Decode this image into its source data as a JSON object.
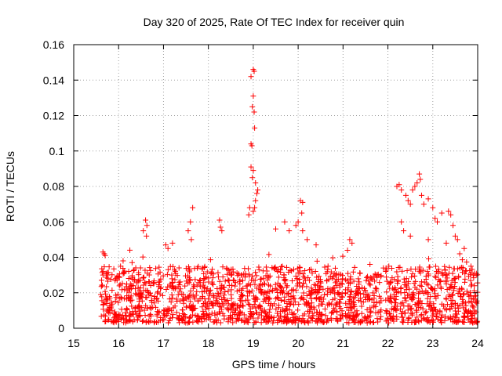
{
  "chart_data": {
    "type": "scatter",
    "title": "Day 320 of 2025, Rate Of TEC Index for receiver quin",
    "xlabel": "GPS time / hours",
    "ylabel": "ROTI / TECUs",
    "xlim": [
      15,
      24
    ],
    "ylim": [
      0,
      0.16
    ],
    "grid": true,
    "marker": "+",
    "marker_color": "#ff0000",
    "xticks": [
      "15",
      "16",
      "17",
      "18",
      "19",
      "20",
      "21",
      "22",
      "23",
      "24"
    ],
    "yticks": [
      "0",
      "0.02",
      "0.04",
      "0.06",
      "0.08",
      "0.1",
      "0.12",
      "0.14",
      "0.16"
    ],
    "series": [
      {
        "name": "ROTI",
        "segments": [
          {
            "start": 15.6,
            "end": 21.0,
            "base_min": 0.003,
            "base_max": 0.035
          },
          {
            "start": 21.05,
            "end": 21.85,
            "base_min": 0.003,
            "base_max": 0.032
          },
          {
            "start": 21.95,
            "end": 24.0,
            "base_min": 0.003,
            "base_max": 0.035
          }
        ],
        "highlights": [
          {
            "x": 15.65,
            "y": 0.043
          },
          {
            "x": 15.68,
            "y": 0.042
          },
          {
            "x": 15.7,
            "y": 0.041
          },
          {
            "x": 16.1,
            "y": 0.038
          },
          {
            "x": 16.3,
            "y": 0.037
          },
          {
            "x": 16.55,
            "y": 0.055
          },
          {
            "x": 16.6,
            "y": 0.061
          },
          {
            "x": 16.63,
            "y": 0.058
          },
          {
            "x": 16.62,
            "y": 0.052
          },
          {
            "x": 17.05,
            "y": 0.047
          },
          {
            "x": 17.2,
            "y": 0.048
          },
          {
            "x": 17.1,
            "y": 0.045
          },
          {
            "x": 17.55,
            "y": 0.055
          },
          {
            "x": 17.6,
            "y": 0.06
          },
          {
            "x": 17.65,
            "y": 0.068
          },
          {
            "x": 17.62,
            "y": 0.05
          },
          {
            "x": 18.25,
            "y": 0.061
          },
          {
            "x": 18.27,
            "y": 0.057
          },
          {
            "x": 18.3,
            "y": 0.055
          },
          {
            "x": 18.9,
            "y": 0.064
          },
          {
            "x": 18.92,
            "y": 0.068
          },
          {
            "x": 18.95,
            "y": 0.142
          },
          {
            "x": 19.0,
            "y": 0.146
          },
          {
            "x": 19.02,
            "y": 0.145
          },
          {
            "x": 18.98,
            "y": 0.125
          },
          {
            "x": 19.0,
            "y": 0.131
          },
          {
            "x": 19.02,
            "y": 0.122
          },
          {
            "x": 19.03,
            "y": 0.113
          },
          {
            "x": 18.95,
            "y": 0.104
          },
          {
            "x": 18.97,
            "y": 0.103
          },
          {
            "x": 18.95,
            "y": 0.091
          },
          {
            "x": 19.0,
            "y": 0.089
          },
          {
            "x": 18.98,
            "y": 0.085
          },
          {
            "x": 19.05,
            "y": 0.082
          },
          {
            "x": 19.1,
            "y": 0.078
          },
          {
            "x": 19.08,
            "y": 0.076
          },
          {
            "x": 19.05,
            "y": 0.072
          },
          {
            "x": 19.03,
            "y": 0.068
          },
          {
            "x": 19.0,
            "y": 0.066
          },
          {
            "x": 19.5,
            "y": 0.056
          },
          {
            "x": 19.7,
            "y": 0.06
          },
          {
            "x": 19.8,
            "y": 0.055
          },
          {
            "x": 19.95,
            "y": 0.058
          },
          {
            "x": 20.0,
            "y": 0.06
          },
          {
            "x": 20.05,
            "y": 0.072
          },
          {
            "x": 20.1,
            "y": 0.071
          },
          {
            "x": 20.08,
            "y": 0.065
          },
          {
            "x": 20.1,
            "y": 0.055
          },
          {
            "x": 20.2,
            "y": 0.05
          },
          {
            "x": 20.4,
            "y": 0.047
          },
          {
            "x": 21.15,
            "y": 0.05
          },
          {
            "x": 21.2,
            "y": 0.048
          },
          {
            "x": 21.1,
            "y": 0.044
          },
          {
            "x": 21.6,
            "y": 0.036
          },
          {
            "x": 21.9,
            "y": 0.034
          },
          {
            "x": 22.2,
            "y": 0.08
          },
          {
            "x": 22.25,
            "y": 0.081
          },
          {
            "x": 22.3,
            "y": 0.078
          },
          {
            "x": 22.4,
            "y": 0.075
          },
          {
            "x": 22.45,
            "y": 0.072
          },
          {
            "x": 22.5,
            "y": 0.07
          },
          {
            "x": 22.55,
            "y": 0.078
          },
          {
            "x": 22.6,
            "y": 0.08
          },
          {
            "x": 22.65,
            "y": 0.082
          },
          {
            "x": 22.7,
            "y": 0.087
          },
          {
            "x": 22.72,
            "y": 0.084
          },
          {
            "x": 22.75,
            "y": 0.075
          },
          {
            "x": 22.8,
            "y": 0.07
          },
          {
            "x": 22.9,
            "y": 0.073
          },
          {
            "x": 23.0,
            "y": 0.068
          },
          {
            "x": 23.05,
            "y": 0.062
          },
          {
            "x": 23.1,
            "y": 0.06
          },
          {
            "x": 23.2,
            "y": 0.065
          },
          {
            "x": 23.35,
            "y": 0.066
          },
          {
            "x": 23.4,
            "y": 0.064
          },
          {
            "x": 23.45,
            "y": 0.058
          },
          {
            "x": 23.5,
            "y": 0.052
          },
          {
            "x": 23.55,
            "y": 0.05
          },
          {
            "x": 23.7,
            "y": 0.045
          },
          {
            "x": 22.3,
            "y": 0.06
          },
          {
            "x": 22.35,
            "y": 0.055
          },
          {
            "x": 22.5,
            "y": 0.052
          },
          {
            "x": 22.9,
            "y": 0.05
          },
          {
            "x": 23.3,
            "y": 0.048
          },
          {
            "x": 23.6,
            "y": 0.042
          },
          {
            "x": 23.85,
            "y": 0.035
          },
          {
            "x": 23.9,
            "y": 0.03
          }
        ],
        "count": 1800
      }
    ]
  }
}
